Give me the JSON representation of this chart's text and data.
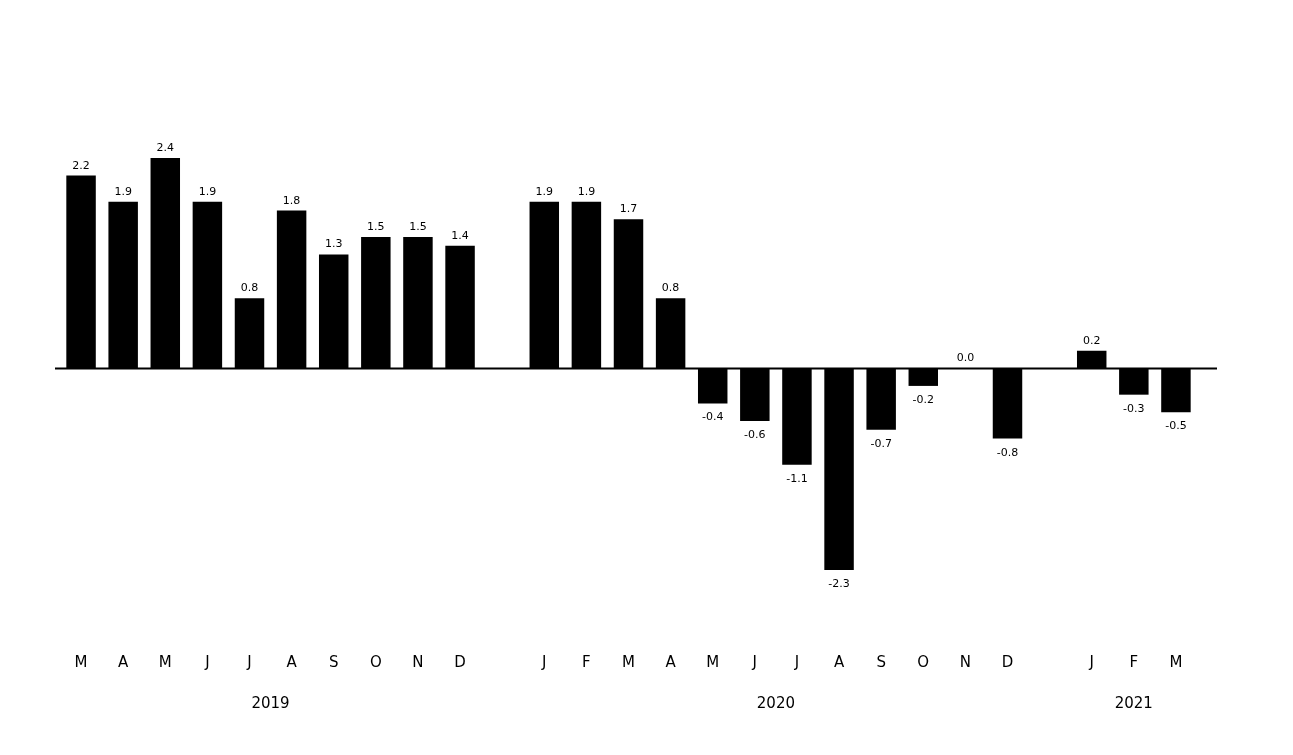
{
  "chart_data": {
    "type": "bar",
    "categories": [
      "M",
      "A",
      "M",
      "J",
      "J",
      "A",
      "S",
      "O",
      "N",
      "D",
      null,
      "J",
      "F",
      "M",
      "A",
      "M",
      "J",
      "J",
      "A",
      "S",
      "O",
      "N",
      "D",
      null,
      "J",
      "F",
      "M"
    ],
    "values": [
      2.2,
      1.9,
      2.4,
      1.9,
      0.8,
      1.8,
      1.3,
      1.5,
      1.5,
      1.4,
      null,
      1.9,
      1.9,
      1.7,
      0.8,
      -0.4,
      -0.6,
      -1.1,
      -2.3,
      -0.7,
      -0.2,
      0.0,
      -0.8,
      null,
      0.2,
      -0.3,
      -0.5
    ],
    "value_labels": [
      "2.2",
      "1.9",
      "2.4",
      "1.9",
      "0.8",
      "1.8",
      "1.3",
      "1.5",
      "1.5",
      "1.4",
      null,
      "1.9",
      "1.9",
      "1.7",
      "0.8",
      "-0.4",
      "-0.6",
      "-1.1",
      "-2.3",
      "-0.7",
      "-0.2",
      "0.0",
      "-0.8",
      null,
      "0.2",
      "-0.3",
      "-0.5"
    ],
    "color": "#000000",
    "annotations": [
      "2019",
      "2020",
      "2021"
    ]
  }
}
